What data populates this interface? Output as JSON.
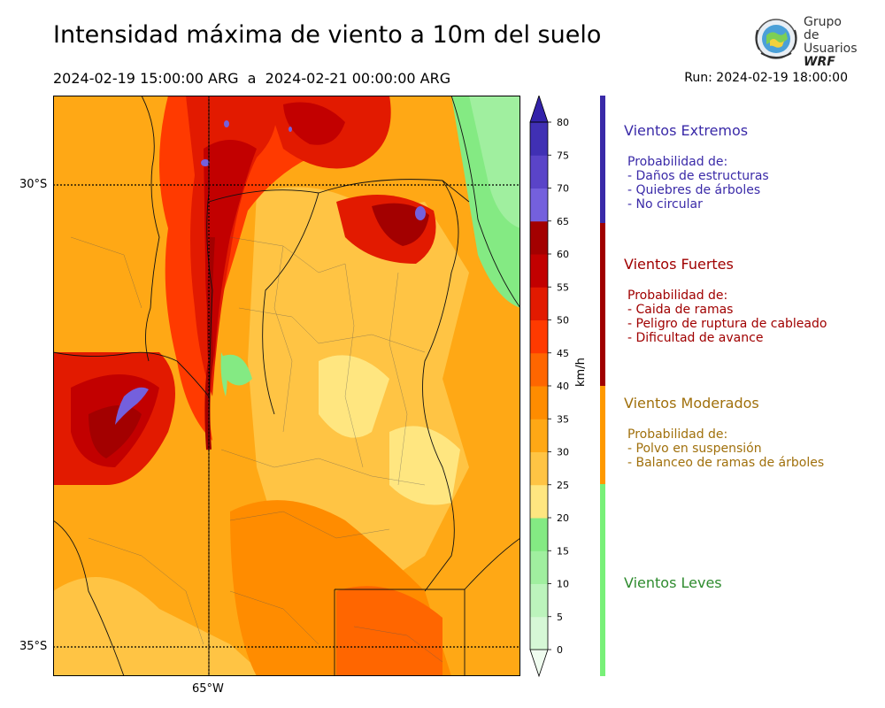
{
  "header": {
    "title": "Intensidad máxima de viento a 10m del suelo",
    "start": "2024-02-19 15:00:00 ARG",
    "sep": "a",
    "end": "2024-02-21 00:00:00 ARG",
    "run": "Run: 2024-02-19 18:00:00"
  },
  "logo": {
    "line1": "Grupo de",
    "line2": "Usuarios",
    "line3": "WRF"
  },
  "map": {
    "lat_labels": [
      "30°S",
      "35°S"
    ],
    "lon_labels": [
      "65°W"
    ]
  },
  "colorbar": {
    "unit": "km/h",
    "ticks": [
      "0",
      "5",
      "10",
      "15",
      "20",
      "25",
      "30",
      "35",
      "40",
      "45",
      "50",
      "55",
      "60",
      "65",
      "70",
      "75",
      "80"
    ],
    "colors": [
      "#effcef",
      "#d6f8d6",
      "#bcf4bc",
      "#a0ef9f",
      "#84ea83",
      "#ffe680",
      "#ffc444",
      "#ffa815",
      "#ff8c00",
      "#ff6600",
      "#ff3a00",
      "#e21a00",
      "#c20000",
      "#a30000",
      "#7460dd",
      "#5a44c8",
      "#4030b4",
      "#3322aa"
    ],
    "colors_is_note": false
  },
  "categories": [
    {
      "title": "Vientos Extremos",
      "color": "#3a2aa8",
      "lines": [
        "Probabilidad de:",
        "- Daños de estructuras",
        "- Quiebres de árboles",
        "- No circular"
      ]
    },
    {
      "title": "Vientos Fuertes",
      "color": "#a00000",
      "lines": [
        "Probabilidad de:",
        "- Caida de ramas",
        "- Peligro de ruptura de cableado",
        "- Dificultad de avance"
      ]
    },
    {
      "title": "Vientos Moderados",
      "color": "#a0700c",
      "lines": [
        "Probabilidad de:",
        "- Polvo en suspensión",
        "- Balanceo de ramas de árboles"
      ]
    },
    {
      "title": "Vientos Leves",
      "color": "#2e8b2e",
      "lines": []
    }
  ],
  "strip_colors": [
    "#3a2aa8",
    "#a00000",
    "#ff9900",
    "#78f078"
  ]
}
